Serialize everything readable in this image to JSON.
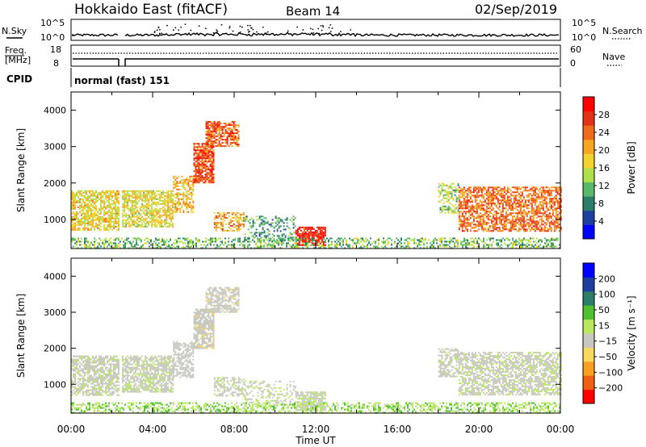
{
  "header": {
    "station": "Hokkaido East (fitACF)",
    "beam": "Beam 14",
    "date": "02/Sep/2019"
  },
  "nsky_panel": {
    "left_label": "N.Sky",
    "left_ticks": [
      "10^5",
      "10^0"
    ],
    "right_label": "N.Search",
    "right_ticks": [
      "10^5",
      "10^0"
    ],
    "legend_style": "dotted"
  },
  "freq_panel": {
    "label_line1": "Freq.",
    "label_line2": "[MHz]",
    "left_ticks": [
      "18",
      "8"
    ],
    "right_label": "Nave",
    "right_ticks": [
      "60",
      "0"
    ]
  },
  "cpid_panel": {
    "label": "CPID",
    "mode": "normal (fast) 151"
  },
  "chart_data": [
    {
      "type": "heatmap",
      "title": "",
      "ylabel": "Slant Range [km]",
      "xlabel": "",
      "ylim": [
        200,
        4500
      ],
      "yticks": [
        "1000",
        "2000",
        "3000",
        "4000"
      ],
      "xlim_hours": [
        0,
        24
      ],
      "colorbar": {
        "label": "Power [dB]",
        "ticks": [
          "4",
          "8",
          "12",
          "16",
          "20",
          "24",
          "28"
        ],
        "range": [
          0,
          32
        ],
        "colors": [
          "#0000ff",
          "#1f3fa0",
          "#2e7d6a",
          "#5ab86a",
          "#aee04a",
          "#f2d22e",
          "#f5a623",
          "#ee6b1b",
          "#e23316",
          "#ff0000"
        ]
      },
      "regions": [
        {
          "t0": 0.0,
          "t1": 2.3,
          "r0": 700,
          "r1": 1800,
          "value": 18,
          "density": 0.7
        },
        {
          "t0": 2.5,
          "t1": 5.0,
          "r0": 800,
          "r1": 1800,
          "value": 17,
          "density": 0.7
        },
        {
          "t0": 5.0,
          "t1": 6.0,
          "r0": 1200,
          "r1": 2200,
          "value": 20,
          "density": 0.6
        },
        {
          "t0": 6.0,
          "t1": 7.0,
          "r0": 2000,
          "r1": 3100,
          "value": 26,
          "density": 0.8
        },
        {
          "t0": 6.6,
          "t1": 8.2,
          "r0": 3000,
          "r1": 3700,
          "value": 25,
          "density": 0.7
        },
        {
          "t0": 7.0,
          "t1": 8.5,
          "r0": 700,
          "r1": 1200,
          "value": 21,
          "density": 0.5
        },
        {
          "t0": 8.5,
          "t1": 11.0,
          "r0": 400,
          "r1": 1100,
          "value": 10,
          "density": 0.3
        },
        {
          "t0": 11.0,
          "t1": 12.5,
          "r0": 300,
          "r1": 800,
          "value": 29,
          "density": 0.8
        },
        {
          "t0": 18.0,
          "t1": 19.0,
          "r0": 1200,
          "r1": 2000,
          "value": 14,
          "density": 0.5
        },
        {
          "t0": 19.0,
          "t1": 24.0,
          "r0": 700,
          "r1": 1900,
          "value": 24,
          "density": 0.65
        },
        {
          "t0": 0.0,
          "t1": 24.0,
          "r0": 200,
          "r1": 500,
          "value": 12,
          "density": 0.45
        }
      ]
    },
    {
      "type": "heatmap",
      "title": "",
      "ylabel": "Slant Range [km]",
      "xlabel": "Time UT",
      "ylim": [
        200,
        4500
      ],
      "yticks": [
        "1000",
        "2000",
        "3000",
        "4000"
      ],
      "xticks": [
        "00:00",
        "04:00",
        "08:00",
        "12:00",
        "16:00",
        "20:00",
        "00:00"
      ],
      "xlim_hours": [
        0,
        24
      ],
      "colorbar": {
        "label": "Velocity [m s⁻¹]",
        "ticks": [
          "200",
          "100",
          "50",
          "15",
          "−15",
          "−50",
          "−100",
          "−200"
        ],
        "range": [
          -250,
          250
        ],
        "colors": [
          "#ff0000",
          "#f06014",
          "#f8a020",
          "#f8d860",
          "#c8c8c0",
          "#b8e860",
          "#50c030",
          "#2e7d6a",
          "#1f3fa0",
          "#0000ff"
        ]
      },
      "regions": [
        {
          "t0": 0.0,
          "t1": 2.3,
          "r0": 700,
          "r1": 1800,
          "value": 0,
          "density": 0.7
        },
        {
          "t0": 2.5,
          "t1": 5.0,
          "r0": 800,
          "r1": 1800,
          "value": 0,
          "density": 0.7
        },
        {
          "t0": 5.0,
          "t1": 6.0,
          "r0": 1200,
          "r1": 2200,
          "value": -20,
          "density": 0.6
        },
        {
          "t0": 6.0,
          "t1": 7.0,
          "r0": 2000,
          "r1": 3100,
          "value": -30,
          "density": 0.8
        },
        {
          "t0": 6.6,
          "t1": 8.2,
          "r0": 3000,
          "r1": 3700,
          "value": -25,
          "density": 0.7
        },
        {
          "t0": 7.0,
          "t1": 8.5,
          "r0": 700,
          "r1": 1200,
          "value": 0,
          "density": 0.5
        },
        {
          "t0": 8.5,
          "t1": 11.0,
          "r0": 400,
          "r1": 1100,
          "value": 5,
          "density": 0.3
        },
        {
          "t0": 11.0,
          "t1": 12.5,
          "r0": 300,
          "r1": 800,
          "value": 0,
          "density": 0.8
        },
        {
          "t0": 18.0,
          "t1": 19.0,
          "r0": 1200,
          "r1": 2000,
          "value": 0,
          "density": 0.5
        },
        {
          "t0": 19.0,
          "t1": 24.0,
          "r0": 700,
          "r1": 1900,
          "value": 0,
          "density": 0.65
        },
        {
          "t0": 0.0,
          "t1": 24.0,
          "r0": 200,
          "r1": 500,
          "value": 40,
          "density": 0.45
        }
      ]
    }
  ]
}
